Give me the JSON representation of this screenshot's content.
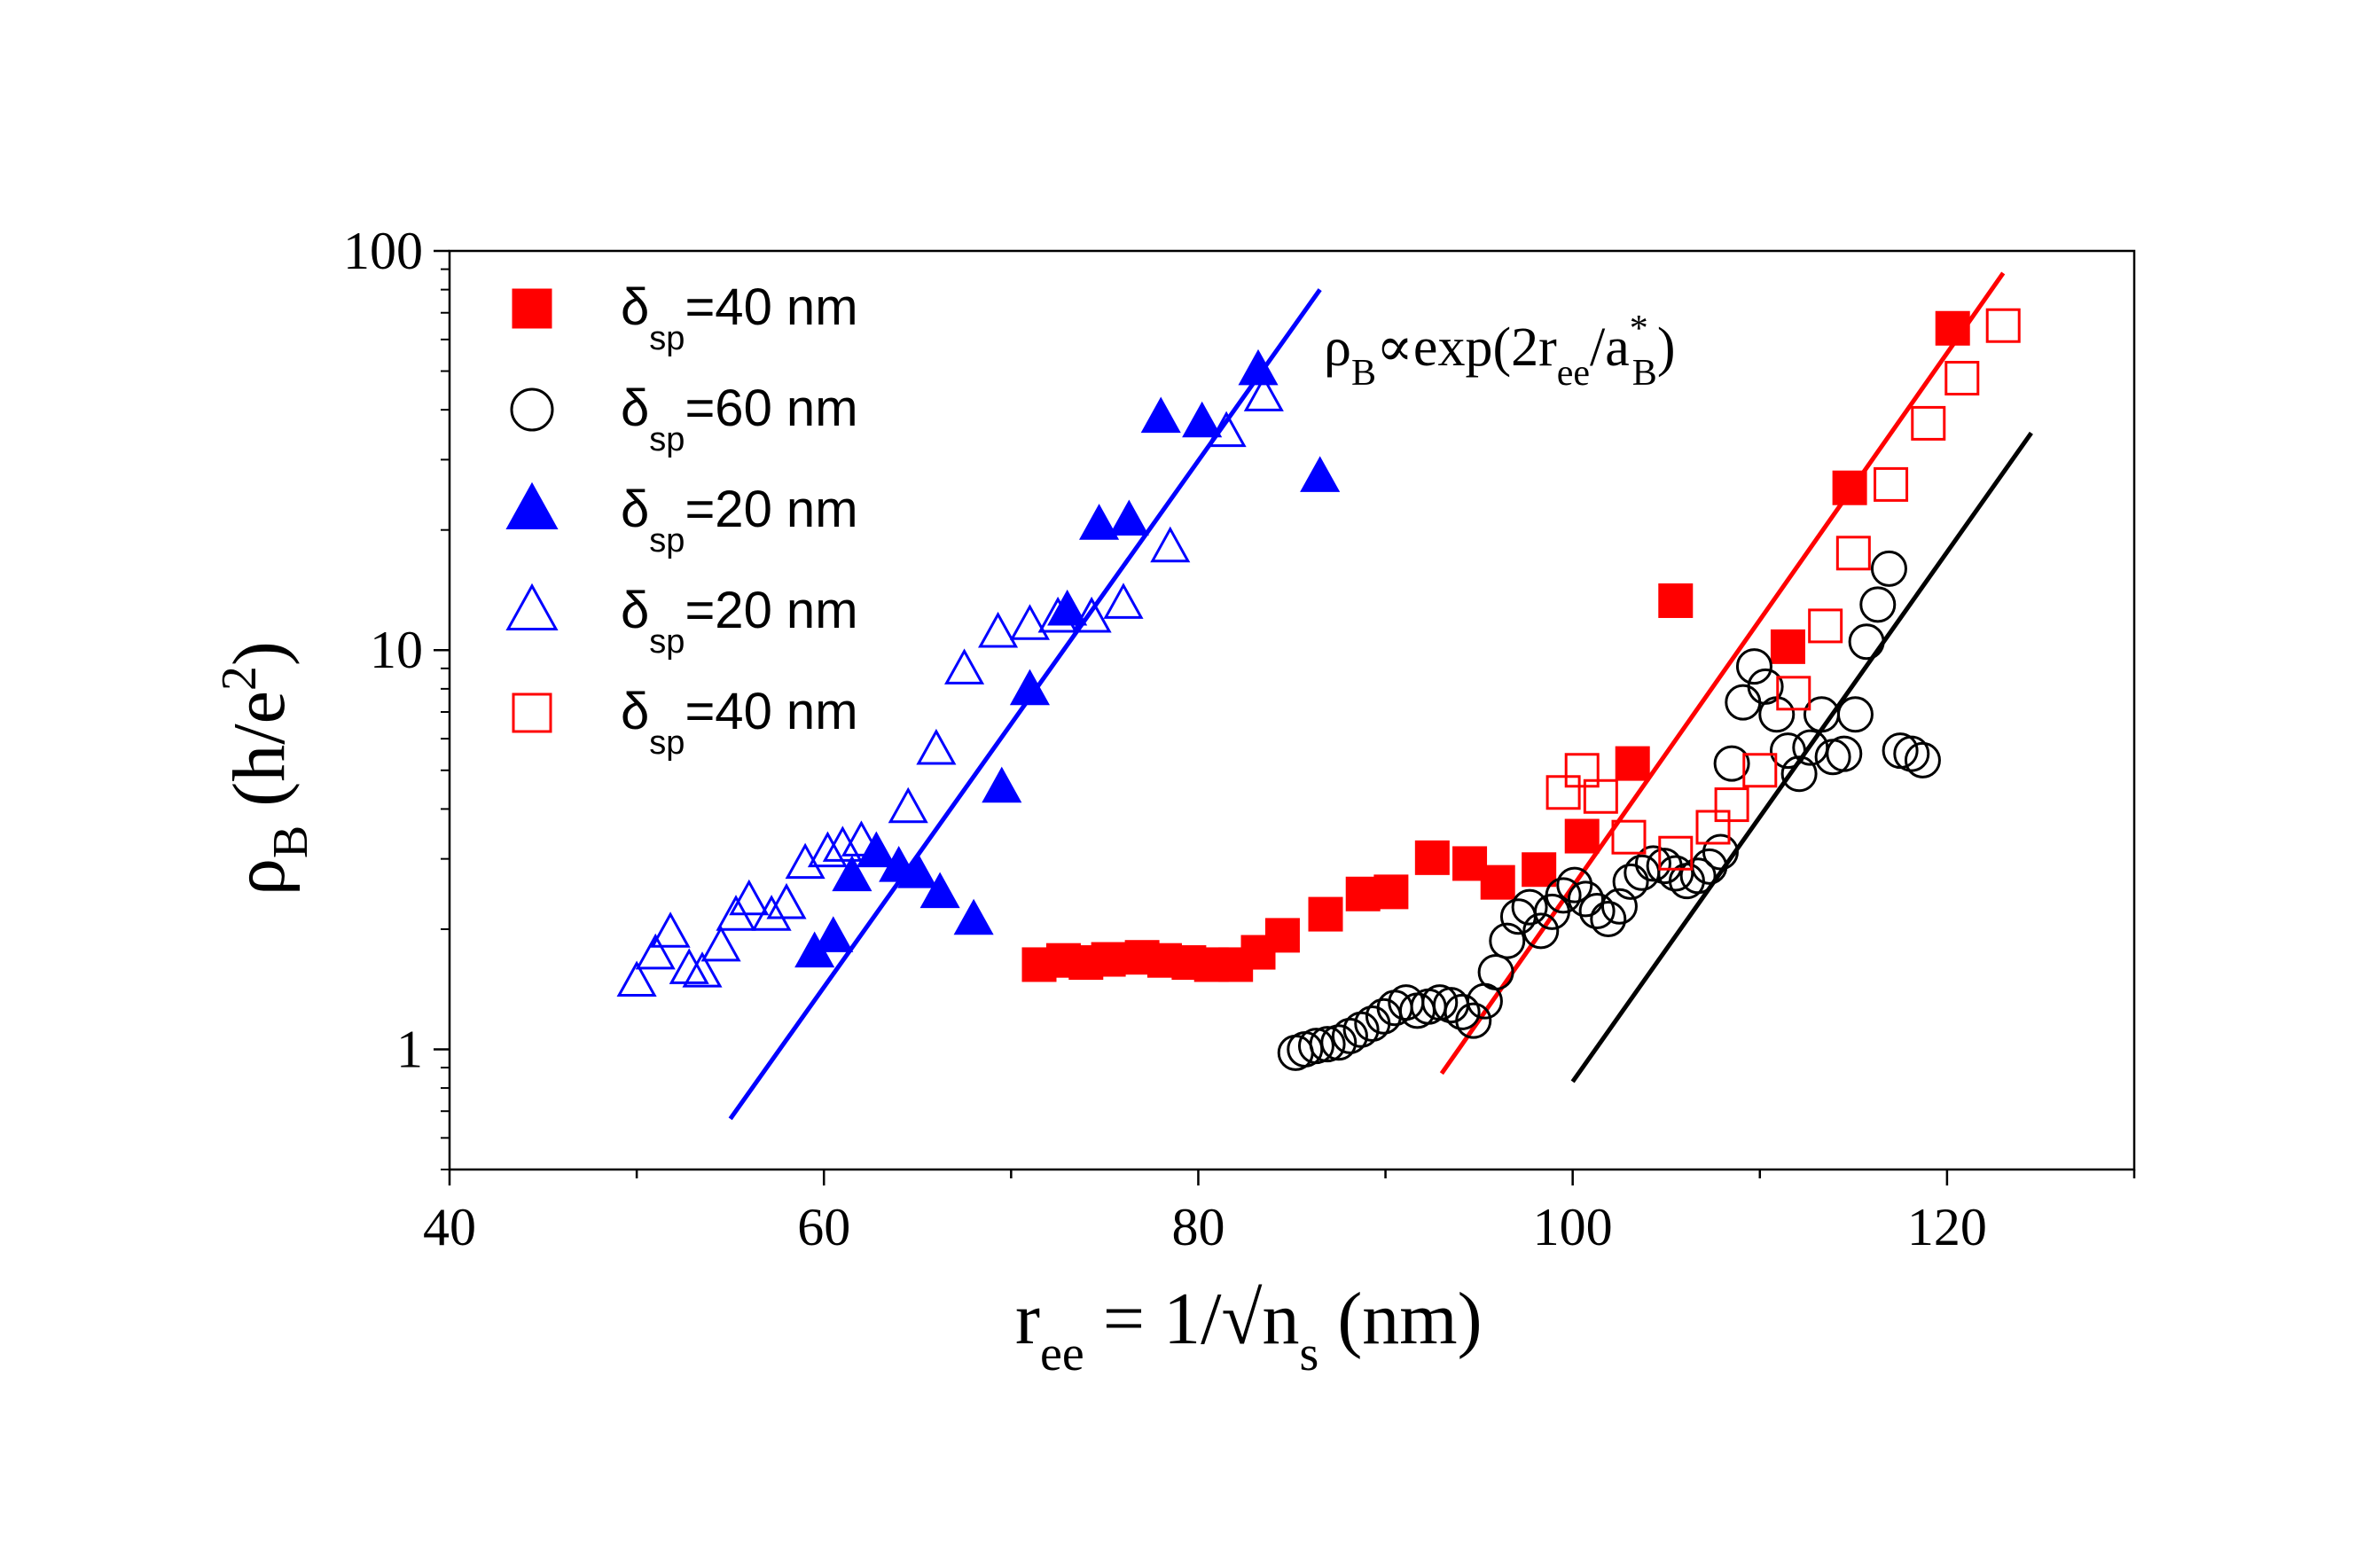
{
  "chart_data": {
    "type": "scatter",
    "xlim": [
      40,
      130
    ],
    "ylim": [
      0.5,
      100
    ],
    "yscale": "log",
    "xticks": [
      {
        "value": 40,
        "label": "40"
      },
      {
        "value": 60,
        "label": "60"
      },
      {
        "value": 80,
        "label": "80"
      },
      {
        "value": 100,
        "label": "100"
      },
      {
        "value": 120,
        "label": "120"
      }
    ],
    "yticks": [
      {
        "value": 1,
        "label": "1"
      },
      {
        "value": 10,
        "label": "10"
      },
      {
        "value": 100,
        "label": "100"
      }
    ],
    "xlabel": {
      "main": "r",
      "sub1": "ee",
      "mid": " = 1/√n",
      "sub2": "s",
      "tail": " (nm)"
    },
    "ylabel": {
      "main": "ρ",
      "sub": "B",
      "mid": " (h/e",
      "sup": "2",
      "tail": ")"
    },
    "annotation": {
      "rho": "ρ",
      "sub1": "B",
      "prop": "∝exp(2r",
      "sub2": "ee",
      "slash": "/a",
      "sup": "*",
      "sub3": "B",
      "close": ")"
    },
    "series": [
      {
        "name": "δsp=40 nm",
        "legend": {
          "delta": "δ",
          "sub": "sp",
          "text": "=40 nm"
        },
        "marker": "square",
        "filled": true,
        "color": "#ff0000",
        "x": [
          71.5,
          72.8,
          74.0,
          75.2,
          77.0,
          78.2,
          79.5,
          80.7,
          82.0,
          83.2,
          84.5,
          86.8,
          88.8,
          90.3,
          92.5,
          94.5,
          96.0,
          98.2,
          100.5,
          103.2,
          105.5,
          111.5,
          114.8,
          120.3
        ],
        "y": [
          1.63,
          1.67,
          1.65,
          1.68,
          1.7,
          1.67,
          1.65,
          1.63,
          1.63,
          1.75,
          1.93,
          2.18,
          2.45,
          2.48,
          3.02,
          2.92,
          2.62,
          2.82,
          3.42,
          5.2,
          13.3,
          10.2,
          25.5,
          64.0
        ]
      },
      {
        "name": "δsp=60 nm",
        "legend": {
          "delta": "δ",
          "sub": "sp",
          "text": "=60 nm"
        },
        "marker": "circle",
        "filled": false,
        "color": "#000000",
        "x": [
          85.2,
          85.7,
          86.3,
          86.9,
          87.5,
          88.1,
          88.7,
          89.3,
          89.9,
          90.5,
          91.1,
          91.7,
          92.3,
          92.9,
          93.5,
          94.1,
          94.7,
          95.3,
          95.9,
          96.5,
          97.1,
          97.7,
          98.3,
          98.9,
          99.5,
          100.1,
          100.7,
          101.3,
          101.9,
          102.5,
          103.1,
          103.7,
          104.3,
          104.9,
          105.5,
          106.1,
          106.7,
          107.3,
          107.9,
          108.5,
          109.1,
          109.7,
          110.3,
          110.9,
          111.5,
          112.1,
          112.7,
          113.3,
          113.9,
          114.5,
          115.1,
          115.7,
          116.3,
          116.9,
          117.5,
          118.1,
          118.7
        ],
        "y": [
          0.98,
          1.0,
          1.02,
          1.03,
          1.04,
          1.08,
          1.12,
          1.16,
          1.21,
          1.27,
          1.31,
          1.25,
          1.28,
          1.31,
          1.29,
          1.24,
          1.18,
          1.32,
          1.56,
          1.87,
          2.15,
          2.27,
          1.98,
          2.21,
          2.43,
          2.58,
          2.38,
          2.22,
          2.12,
          2.28,
          2.63,
          2.77,
          2.92,
          2.88,
          2.76,
          2.64,
          2.72,
          2.87,
          3.12,
          5.2,
          7.4,
          9.1,
          8.1,
          6.9,
          5.6,
          4.9,
          5.7,
          6.9,
          5.4,
          5.5,
          6.9,
          10.5,
          13.0,
          16.0,
          5.6,
          5.5,
          5.3
        ]
      },
      {
        "name": "δsp=20 nm (filled)",
        "legend": {
          "delta": "δ",
          "sub": "sp",
          "text": "=20 nm"
        },
        "marker": "triangle",
        "filled": true,
        "color": "#0000ff",
        "x": [
          59.5,
          60.5,
          61.5,
          62.8,
          64.0,
          65.0,
          66.2,
          68.0,
          69.5,
          71.0,
          73.0,
          74.7,
          76.3,
          78.0,
          80.2,
          83.2,
          86.5
        ],
        "y": [
          1.74,
          1.9,
          2.7,
          3.1,
          2.85,
          2.75,
          2.45,
          2.1,
          4.5,
          7.9,
          12.5,
          20.5,
          21.0,
          38.0,
          37.0,
          50.0,
          27.0
        ]
      },
      {
        "name": "δsp=20 nm (open)",
        "legend": {
          "delta": "δ",
          "sub": "sp",
          "text": "=20 nm"
        },
        "marker": "triangle",
        "filled": false,
        "color": "#0000ff",
        "x": [
          50.0,
          51.0,
          51.8,
          52.8,
          53.5,
          54.5,
          55.3,
          56.0,
          57.2,
          58.0,
          59.0,
          60.2,
          61.0,
          62.0,
          64.5,
          66.0,
          67.5,
          69.3,
          71.0,
          72.5,
          74.3,
          76.0,
          78.5,
          81.5,
          83.5
        ],
        "y": [
          1.47,
          1.72,
          1.95,
          1.58,
          1.55,
          1.8,
          2.15,
          2.35,
          2.15,
          2.3,
          2.9,
          3.1,
          3.2,
          3.3,
          4.0,
          5.6,
          8.9,
          11.0,
          11.5,
          12.0,
          12.0,
          13.0,
          18.0,
          35.0,
          43.0
        ]
      },
      {
        "name": "δsp=40 nm (open)",
        "legend": {
          "delta": "δ",
          "sub": "sp",
          "text": "=40 nm"
        },
        "marker": "square",
        "filled": false,
        "color": "#ff0000",
        "x": [
          99.5,
          100.5,
          101.5,
          103.0,
          105.5,
          107.5,
          108.5,
          110.0,
          111.8,
          113.5,
          115.0,
          117.0,
          119.0,
          120.8,
          123.0
        ],
        "y": [
          4.4,
          5.0,
          4.3,
          3.4,
          3.1,
          3.6,
          4.1,
          5.0,
          7.8,
          11.5,
          17.5,
          26.0,
          37.0,
          48.0,
          65.0
        ]
      }
    ],
    "fit_lines": [
      {
        "color": "#0000ff",
        "x": [
          55.0,
          86.5
        ],
        "y": [
          0.67,
          80.0
        ]
      },
      {
        "color": "#ff0000",
        "x": [
          93.0,
          123.0
        ],
        "y": [
          0.87,
          88.0
        ]
      },
      {
        "color": "#000000",
        "x": [
          100.0,
          124.5
        ],
        "y": [
          0.83,
          35.0
        ]
      }
    ]
  }
}
